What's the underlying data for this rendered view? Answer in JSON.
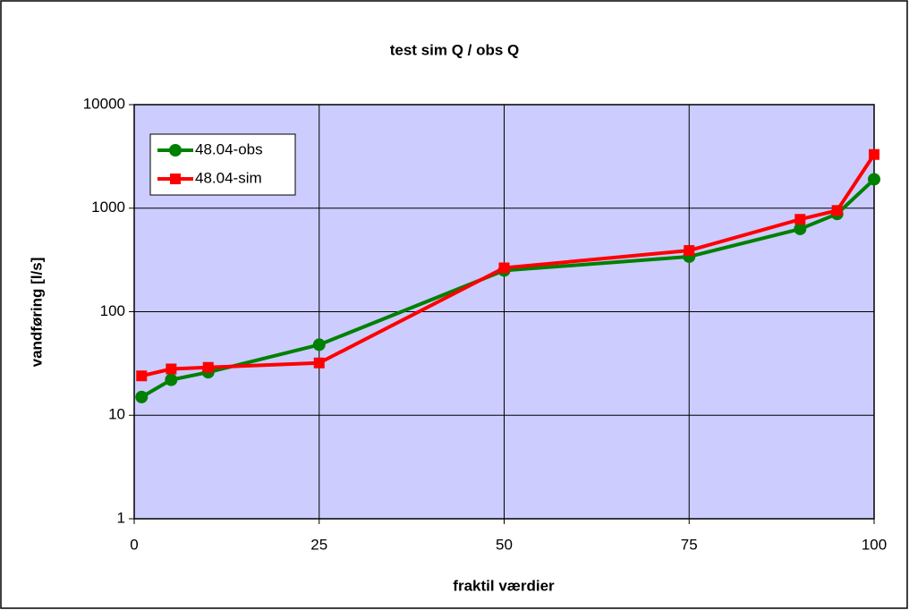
{
  "chart_data": {
    "type": "line",
    "title": "test sim Q / obs Q",
    "x_label": "fraktil værdier",
    "y_label": "vandføring [l/s]",
    "x": [
      1,
      5,
      10,
      25,
      50,
      75,
      90,
      95,
      100
    ],
    "series": [
      {
        "name": "48.04-obs",
        "color": "#008000",
        "marker": "circle",
        "values": [
          15,
          22,
          26,
          48,
          250,
          340,
          630,
          880,
          1900
        ]
      },
      {
        "name": "48.04-sim",
        "color": "#ff0000",
        "marker": "square",
        "values": [
          24,
          28,
          29,
          32,
          265,
          390,
          780,
          950,
          3300
        ]
      }
    ],
    "xlim": [
      0,
      100
    ],
    "xticks": [
      0,
      25,
      50,
      75,
      100
    ],
    "ylim": [
      1,
      10000
    ],
    "yticks": [
      1,
      10,
      100,
      1000,
      10000
    ],
    "y_scale": "log",
    "grid": true,
    "legend": "upper left",
    "plot_background": "#ccccff"
  }
}
